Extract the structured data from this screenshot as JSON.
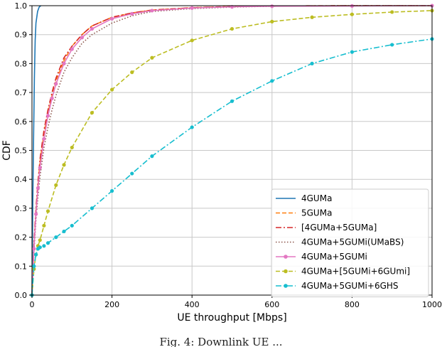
{
  "caption": "Fig. 4: Downlink UE ...",
  "chart_data": {
    "type": "line",
    "xlabel": "UE throughput [Mbps]",
    "ylabel": "CDF",
    "xlim": [
      0,
      1000
    ],
    "ylim": [
      0,
      1.0
    ],
    "xticks": [
      0,
      200,
      400,
      600,
      800,
      1000
    ],
    "yticks": [
      0.0,
      0.1,
      0.2,
      0.3,
      0.4,
      0.5,
      0.6,
      0.7,
      0.8,
      0.9,
      1.0
    ],
    "grid": true,
    "legend_position": "lower-right",
    "series": [
      {
        "name": "4GUMa",
        "color": "#1f77b4",
        "dash": "solid",
        "marker": "none",
        "x": [
          0,
          2,
          4,
          6,
          8,
          10,
          14,
          18,
          22
        ],
        "y": [
          0.0,
          0.3,
          0.55,
          0.75,
          0.88,
          0.94,
          0.98,
          0.995,
          1.0
        ]
      },
      {
        "name": "5GUMa",
        "color": "#ff7f0e",
        "dash": "dashed",
        "marker": "none",
        "x": [
          0,
          5,
          10,
          15,
          20,
          30,
          40,
          50,
          60,
          80,
          100,
          125,
          150,
          200,
          250,
          300,
          400,
          500,
          600,
          800,
          1000
        ],
        "y": [
          0.0,
          0.17,
          0.29,
          0.38,
          0.46,
          0.56,
          0.63,
          0.69,
          0.74,
          0.81,
          0.86,
          0.9,
          0.93,
          0.96,
          0.975,
          0.985,
          0.993,
          0.997,
          0.999,
          1.0,
          1.0
        ]
      },
      {
        "name": "[4GUMa+5GUMa]",
        "color": "#d62728",
        "dash": "dashdot",
        "marker": "none",
        "x": [
          0,
          5,
          10,
          15,
          20,
          30,
          40,
          50,
          60,
          80,
          100,
          125,
          150,
          200,
          250,
          300,
          400,
          500,
          600,
          800,
          1000
        ],
        "y": [
          0.0,
          0.18,
          0.3,
          0.39,
          0.47,
          0.57,
          0.64,
          0.7,
          0.75,
          0.82,
          0.86,
          0.9,
          0.93,
          0.96,
          0.975,
          0.985,
          0.993,
          0.997,
          0.999,
          1.0,
          1.0
        ]
      },
      {
        "name": "4GUMa+5GUMi(UMaBS)",
        "color": "#8c564b",
        "dash": "dotted",
        "marker": "none",
        "x": [
          0,
          5,
          10,
          15,
          20,
          30,
          40,
          50,
          60,
          80,
          100,
          125,
          150,
          200,
          250,
          300,
          400,
          500,
          600,
          800,
          1000
        ],
        "y": [
          0.0,
          0.15,
          0.26,
          0.34,
          0.41,
          0.51,
          0.58,
          0.64,
          0.69,
          0.77,
          0.82,
          0.87,
          0.9,
          0.94,
          0.965,
          0.98,
          0.99,
          0.995,
          0.998,
          1.0,
          1.0
        ]
      },
      {
        "name": "4GUMa+5GUMi",
        "color": "#e377c2",
        "dash": "solid",
        "marker": "circle",
        "x": [
          0,
          5,
          10,
          15,
          20,
          30,
          40,
          50,
          60,
          80,
          100,
          125,
          150,
          200,
          250,
          300,
          400,
          500,
          600,
          800,
          1000
        ],
        "y": [
          0.0,
          0.16,
          0.28,
          0.37,
          0.44,
          0.54,
          0.62,
          0.68,
          0.73,
          0.8,
          0.85,
          0.89,
          0.92,
          0.955,
          0.972,
          0.983,
          0.992,
          0.996,
          0.998,
          0.999,
          1.0
        ]
      },
      {
        "name": "4GUMa+[5GUMi+6GUmi]",
        "color": "#bcbd22",
        "dash": "dashed",
        "marker": "circle",
        "x": [
          0,
          5,
          10,
          15,
          20,
          30,
          40,
          60,
          80,
          100,
          150,
          200,
          250,
          300,
          400,
          500,
          600,
          700,
          800,
          900,
          1000
        ],
        "y": [
          0.0,
          0.09,
          0.14,
          0.17,
          0.19,
          0.24,
          0.29,
          0.38,
          0.45,
          0.51,
          0.63,
          0.71,
          0.77,
          0.82,
          0.88,
          0.92,
          0.945,
          0.96,
          0.97,
          0.978,
          0.983
        ]
      },
      {
        "name": "4GUMa+5GUMi+6GHS",
        "color": "#17becf",
        "dash": "dashdot",
        "marker": "circle",
        "x": [
          0,
          5,
          10,
          15,
          20,
          30,
          40,
          60,
          80,
          100,
          150,
          200,
          250,
          300,
          400,
          500,
          600,
          700,
          800,
          900,
          1000
        ],
        "y": [
          0.0,
          0.1,
          0.14,
          0.16,
          0.165,
          0.17,
          0.18,
          0.2,
          0.22,
          0.24,
          0.3,
          0.36,
          0.42,
          0.48,
          0.58,
          0.67,
          0.74,
          0.8,
          0.84,
          0.865,
          0.885
        ]
      }
    ]
  }
}
